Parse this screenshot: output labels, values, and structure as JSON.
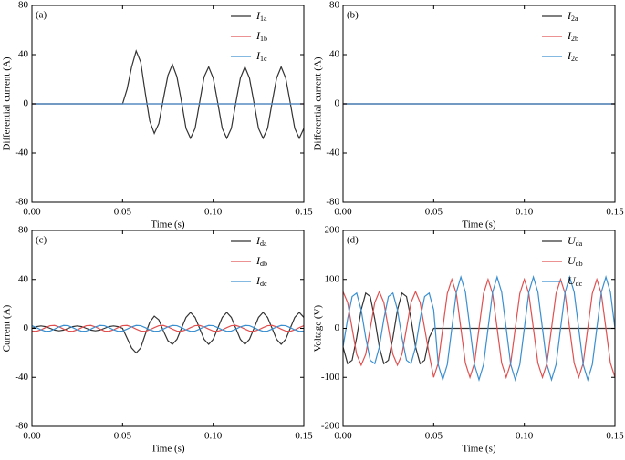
{
  "chart_data": [
    {
      "type": "line",
      "panel_label": "(a)",
      "ylabel": "Differential current (A)",
      "xlabel": "Time (s)",
      "legend": "upper right",
      "xlim": [
        0,
        0.15
      ],
      "xticks": [
        {
          "value": 0,
          "label": "0.00"
        },
        0.05,
        {
          "value": 0.1,
          "label": "0.10"
        },
        0.15
      ],
      "ylim": [
        -80,
        80
      ],
      "yticks": [
        -80,
        -40,
        0,
        40,
        80
      ],
      "x": [
        0,
        0.0025,
        0.005,
        0.0075,
        0.01,
        0.0125,
        0.015,
        0.0175,
        0.02,
        0.0225,
        0.025,
        0.0275,
        0.03,
        0.0325,
        0.035,
        0.0375,
        0.04,
        0.0425,
        0.045,
        0.0475,
        0.05,
        0.0525,
        0.055,
        0.0575,
        0.06,
        0.0625,
        0.065,
        0.0675,
        0.07,
        0.0725,
        0.075,
        0.0775,
        0.08,
        0.0825,
        0.085,
        0.0875,
        0.09,
        0.0925,
        0.095,
        0.0975,
        0.1,
        0.1025,
        0.105,
        0.1075,
        0.11,
        0.1125,
        0.115,
        0.1175,
        0.12,
        0.1225,
        0.125,
        0.1275,
        0.13,
        0.1325,
        0.135,
        0.1375,
        0.14,
        0.1425,
        0.145,
        0.1475,
        0.15
      ],
      "series": [
        {
          "name": "I1a",
          "color": "#333333",
          "values": [
            0,
            0,
            0,
            0,
            0,
            0,
            0,
            0,
            0,
            0,
            0,
            0,
            0,
            0,
            0,
            0,
            0,
            0,
            0,
            0,
            0,
            12,
            30,
            43,
            34,
            9,
            -14,
            -24,
            -16,
            4,
            23,
            32,
            22,
            2,
            -20,
            -28,
            -20,
            1,
            22,
            30,
            21,
            1,
            -20,
            -28,
            -20,
            1,
            21,
            30,
            21,
            1,
            -20,
            -28,
            -20,
            1,
            21,
            30,
            21,
            1,
            -20,
            -28,
            -20
          ]
        },
        {
          "name": "I1b",
          "color": "#e05050",
          "values": [
            0,
            0,
            0,
            0,
            0,
            0,
            0,
            0,
            0,
            0,
            0,
            0,
            0,
            0,
            0,
            0,
            0,
            0,
            0,
            0,
            0,
            0,
            0,
            0,
            0,
            0,
            0,
            0,
            0,
            0,
            0,
            0,
            0,
            0,
            0,
            0,
            0,
            0,
            0,
            0,
            0,
            0,
            0,
            0,
            0,
            0,
            0,
            0,
            0,
            0,
            0,
            0,
            0,
            0,
            0,
            0,
            0,
            0,
            0,
            0,
            0
          ]
        },
        {
          "name": "I1c",
          "color": "#3a8fd0",
          "values": [
            0,
            0,
            0,
            0,
            0,
            0,
            0,
            0,
            0,
            0,
            0,
            0,
            0,
            0,
            0,
            0,
            0,
            0,
            0,
            0,
            0,
            0,
            0,
            0,
            0,
            0,
            0,
            0,
            0,
            0,
            0,
            0,
            0,
            0,
            0,
            0,
            0,
            0,
            0,
            0,
            0,
            0,
            0,
            0,
            0,
            0,
            0,
            0,
            0,
            0,
            0,
            0,
            0,
            0,
            0,
            0,
            0,
            0,
            0,
            0,
            0
          ]
        }
      ]
    },
    {
      "type": "line",
      "panel_label": "(b)",
      "ylabel": "Differential current (A)",
      "xlabel": "Time (s)",
      "legend": "upper right",
      "xlim": [
        0,
        0.15
      ],
      "xticks": [
        {
          "value": 0,
          "label": "0.00"
        },
        0.05,
        {
          "value": 0.1,
          "label": "0.10"
        },
        0.15
      ],
      "ylim": [
        -80,
        80
      ],
      "yticks": [
        -80,
        -40,
        0,
        40,
        80
      ],
      "x": [
        0,
        0.15
      ],
      "series": [
        {
          "name": "I2a",
          "color": "#333333",
          "values": [
            0,
            0
          ]
        },
        {
          "name": "I2b",
          "color": "#e05050",
          "values": [
            0,
            0
          ]
        },
        {
          "name": "I2c",
          "color": "#3a8fd0",
          "values": [
            0,
            0
          ]
        }
      ]
    },
    {
      "type": "line",
      "panel_label": "(c)",
      "ylabel": "Current (A)",
      "xlabel": "Time (s)",
      "legend": "upper right",
      "xlim": [
        0,
        0.15
      ],
      "xticks": [
        {
          "value": 0,
          "label": "0.00"
        },
        0.05,
        {
          "value": 0.1,
          "label": "0.10"
        },
        0.15
      ],
      "ylim": [
        -80,
        80
      ],
      "yticks": [
        -80,
        -40,
        0,
        40,
        80
      ],
      "x": [
        0,
        0.0025,
        0.005,
        0.0075,
        0.01,
        0.0125,
        0.015,
        0.0175,
        0.02,
        0.0225,
        0.025,
        0.0275,
        0.03,
        0.0325,
        0.035,
        0.0375,
        0.04,
        0.0425,
        0.045,
        0.0475,
        0.05,
        0.0525,
        0.055,
        0.0575,
        0.06,
        0.0625,
        0.065,
        0.0675,
        0.07,
        0.0725,
        0.075,
        0.0775,
        0.08,
        0.0825,
        0.085,
        0.0875,
        0.09,
        0.0925,
        0.095,
        0.0975,
        0.1,
        0.1025,
        0.105,
        0.1075,
        0.11,
        0.1125,
        0.115,
        0.1175,
        0.12,
        0.1225,
        0.125,
        0.1275,
        0.13,
        0.1325,
        0.135,
        0.1375,
        0.14,
        0.1425,
        0.145,
        0.1475,
        0.15
      ],
      "series": [
        {
          "name": "Ida",
          "color": "#333333",
          "values": [
            0,
            1.4,
            2,
            1.4,
            0,
            -1.4,
            -2,
            -1.4,
            0,
            1.4,
            2,
            1.4,
            0,
            -1.4,
            -2,
            -1.4,
            0,
            1.4,
            2,
            1.4,
            0,
            -8,
            -16,
            -20,
            -16,
            -5,
            5,
            10,
            7,
            -2,
            -10,
            -13,
            -9,
            0,
            9,
            13,
            9,
            0,
            -9,
            -13,
            -9,
            0,
            9,
            13,
            9,
            0,
            -9,
            -13,
            -9,
            0,
            9,
            13,
            9,
            0,
            -9,
            -13,
            -9,
            0,
            9,
            13,
            9
          ]
        },
        {
          "name": "Idb",
          "color": "#e05050",
          "values": [
            -2.2,
            -2.4,
            -1.2,
            0.6,
            2.2,
            2.4,
            1.2,
            -0.6,
            -2.2,
            -2.4,
            -1.2,
            0.6,
            2.2,
            2.4,
            1.2,
            -0.6,
            -2.2,
            -2.4,
            -1.2,
            0.6,
            2.2,
            2.4,
            1.2,
            -0.6,
            -2.2,
            -2.4,
            -1.2,
            0.6,
            2.2,
            2.4,
            1.2,
            -0.6,
            -2.2,
            -2.4,
            -1.2,
            0.6,
            2.2,
            2.4,
            1.2,
            -0.6,
            -2.2,
            -2.4,
            -1.2,
            0.6,
            2.2,
            2.4,
            1.2,
            -0.6,
            -2.2,
            -2.4,
            -1.2,
            0.6,
            2.2,
            2.4,
            1.2,
            -0.6,
            -2.2,
            -2.4,
            -1.2,
            0.6,
            2.2
          ]
        },
        {
          "name": "Idc",
          "color": "#3a8fd0",
          "values": [
            2.2,
            0.6,
            -1.2,
            -2.4,
            -2.2,
            -0.6,
            1.2,
            2.4,
            2.2,
            0.6,
            -1.2,
            -2.4,
            -2.2,
            -0.6,
            1.2,
            2.4,
            2.2,
            0.6,
            -1.2,
            -2.4,
            -2.2,
            -0.6,
            1.2,
            2.4,
            2.2,
            0.6,
            -1.2,
            -2.4,
            -2.2,
            -0.6,
            1.2,
            2.4,
            2.2,
            0.6,
            -1.2,
            -2.4,
            -2.2,
            -0.6,
            1.2,
            2.4,
            2.2,
            0.6,
            -1.2,
            -2.4,
            -2.2,
            -0.6,
            1.2,
            2.4,
            2.2,
            0.6,
            -1.2,
            -2.4,
            -2.2,
            -0.6,
            1.2,
            2.4,
            2.2,
            0.6,
            -1.2,
            -2.4,
            -2.2
          ]
        }
      ]
    },
    {
      "type": "line",
      "panel_label": "(d)",
      "ylabel": "Voltage (V)",
      "xlabel": "Time (s)",
      "legend": "upper right",
      "xlim": [
        0,
        0.15
      ],
      "xticks": [
        {
          "value": 0,
          "label": "0.00"
        },
        0.05,
        {
          "value": 0.1,
          "label": "0.10"
        },
        0.15
      ],
      "ylim": [
        -200,
        200
      ],
      "yticks": [
        -200,
        -100,
        0,
        100,
        200
      ],
      "x": [
        0,
        0.0025,
        0.005,
        0.0075,
        0.01,
        0.0125,
        0.015,
        0.0175,
        0.02,
        0.0225,
        0.025,
        0.0275,
        0.03,
        0.0325,
        0.035,
        0.0375,
        0.04,
        0.0425,
        0.045,
        0.0475,
        0.05,
        0.0525,
        0.055,
        0.0575,
        0.06,
        0.0625,
        0.065,
        0.0675,
        0.07,
        0.0725,
        0.075,
        0.0775,
        0.08,
        0.0825,
        0.085,
        0.0875,
        0.09,
        0.0925,
        0.095,
        0.0975,
        0.1,
        0.1025,
        0.105,
        0.1075,
        0.11,
        0.1125,
        0.115,
        0.1175,
        0.12,
        0.1225,
        0.125,
        0.1275,
        0.13,
        0.1325,
        0.135,
        0.1375,
        0.14,
        0.1425,
        0.145,
        0.1475,
        0.15
      ],
      "series": [
        {
          "name": "Uda",
          "color": "#333333",
          "values": [
            -38,
            -72,
            -65,
            -19,
            38,
            72,
            65,
            19,
            -38,
            -72,
            -65,
            -19,
            38,
            72,
            65,
            19,
            -38,
            -72,
            -65,
            -19,
            0,
            0,
            0,
            0,
            0,
            0,
            0,
            0,
            0,
            0,
            0,
            0,
            0,
            0,
            0,
            0,
            0,
            0,
            0,
            0,
            0,
            0,
            0,
            0,
            0,
            0,
            0,
            0,
            0,
            0,
            0,
            0,
            0,
            0,
            0,
            0,
            0,
            0,
            0,
            0,
            0
          ]
        },
        {
          "name": "Udb",
          "color": "#e05050",
          "values": [
            75,
            53,
            0,
            -53,
            -75,
            -53,
            0,
            53,
            75,
            53,
            0,
            -53,
            -75,
            -53,
            0,
            53,
            75,
            53,
            0,
            -53,
            -100,
            -71,
            0,
            71,
            100,
            71,
            0,
            -71,
            -100,
            -71,
            0,
            71,
            100,
            71,
            0,
            -71,
            -100,
            -71,
            0,
            71,
            100,
            71,
            0,
            -71,
            -100,
            -71,
            0,
            71,
            100,
            71,
            0,
            -71,
            -100,
            -71,
            0,
            71,
            100,
            71,
            0,
            -71,
            -100
          ]
        },
        {
          "name": "Udc",
          "color": "#3a8fd0",
          "values": [
            -38,
            19,
            65,
            72,
            38,
            -19,
            -65,
            -72,
            -38,
            19,
            65,
            72,
            38,
            -19,
            -65,
            -72,
            -38,
            19,
            65,
            72,
            38,
            -74,
            -105,
            -74,
            0,
            74,
            105,
            74,
            0,
            -74,
            -105,
            -74,
            0,
            74,
            105,
            74,
            0,
            -74,
            -105,
            -74,
            0,
            74,
            105,
            74,
            0,
            -74,
            -105,
            -74,
            0,
            74,
            105,
            74,
            0,
            -74,
            -105,
            -74,
            0,
            74,
            105,
            74,
            0
          ]
        }
      ]
    }
  ]
}
